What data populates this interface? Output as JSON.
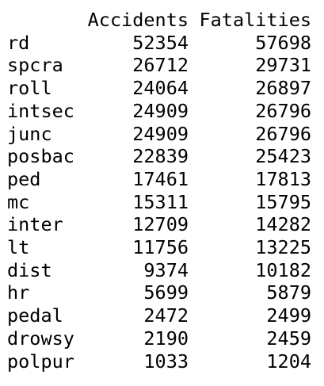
{
  "table": {
    "headers": [
      "Accidents",
      "Fatalities"
    ],
    "rows": [
      {
        "name": "rd",
        "accidents": "52354",
        "fatalities": "57698"
      },
      {
        "name": "spcra",
        "accidents": "26712",
        "fatalities": "29731"
      },
      {
        "name": "roll",
        "accidents": "24064",
        "fatalities": "26897"
      },
      {
        "name": "intsec",
        "accidents": "24909",
        "fatalities": "26796"
      },
      {
        "name": "junc",
        "accidents": "24909",
        "fatalities": "26796"
      },
      {
        "name": "posbac",
        "accidents": "22839",
        "fatalities": "25423"
      },
      {
        "name": "ped",
        "accidents": "17461",
        "fatalities": "17813"
      },
      {
        "name": "mc",
        "accidents": "15311",
        "fatalities": "15795"
      },
      {
        "name": "inter",
        "accidents": "12709",
        "fatalities": "14282"
      },
      {
        "name": "lt",
        "accidents": "11756",
        "fatalities": "13225"
      },
      {
        "name": "dist",
        "accidents": "9374",
        "fatalities": "10182"
      },
      {
        "name": "hr",
        "accidents": "5699",
        "fatalities": "5879"
      },
      {
        "name": "pedal",
        "accidents": "2472",
        "fatalities": "2499"
      },
      {
        "name": "drowsy",
        "accidents": "2190",
        "fatalities": "2459"
      },
      {
        "name": "polpur",
        "accidents": "1033",
        "fatalities": "1204"
      }
    ]
  }
}
